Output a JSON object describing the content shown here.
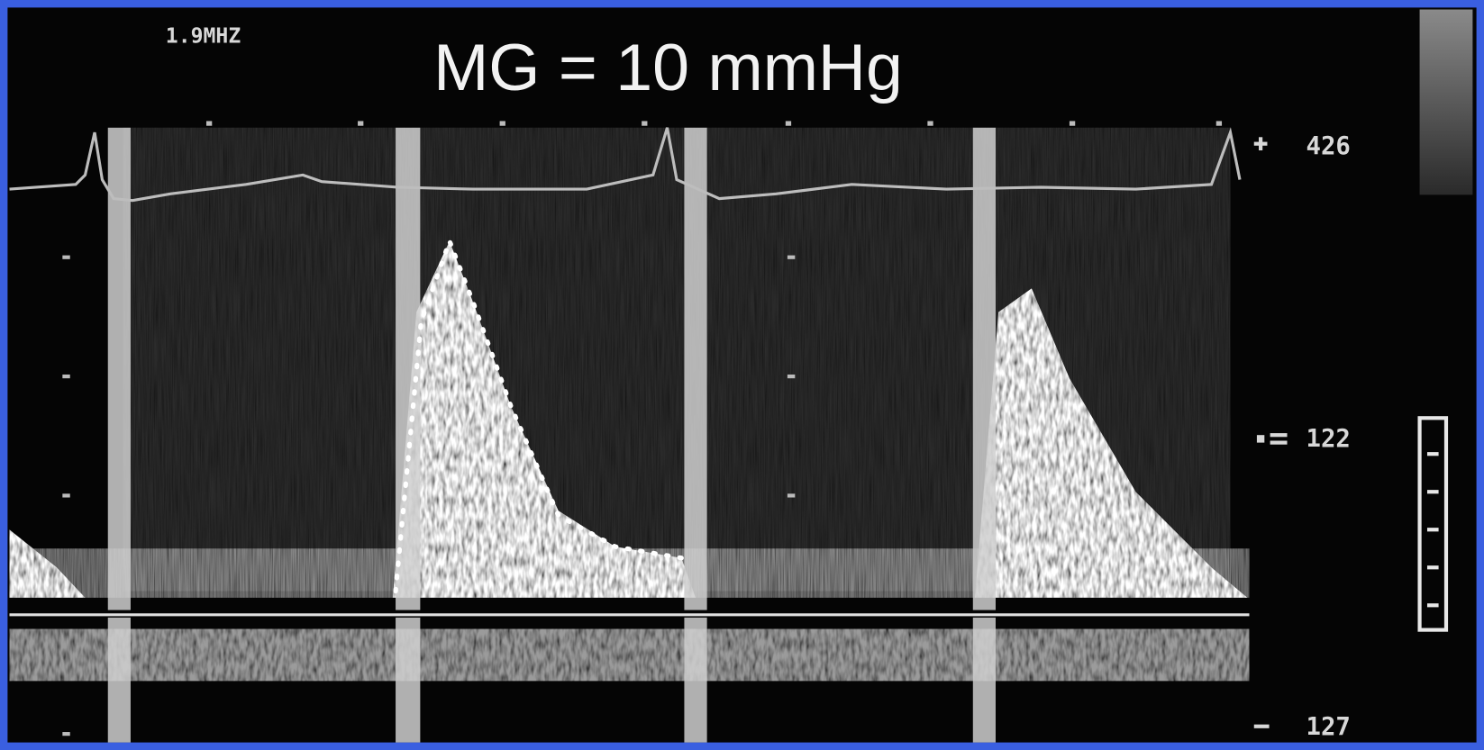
{
  "header": {
    "frequency": "1.9MHZ",
    "title": "MG = 10 mmHg"
  },
  "scale": {
    "top": "426",
    "middle": "122",
    "bottom": "127"
  }
}
